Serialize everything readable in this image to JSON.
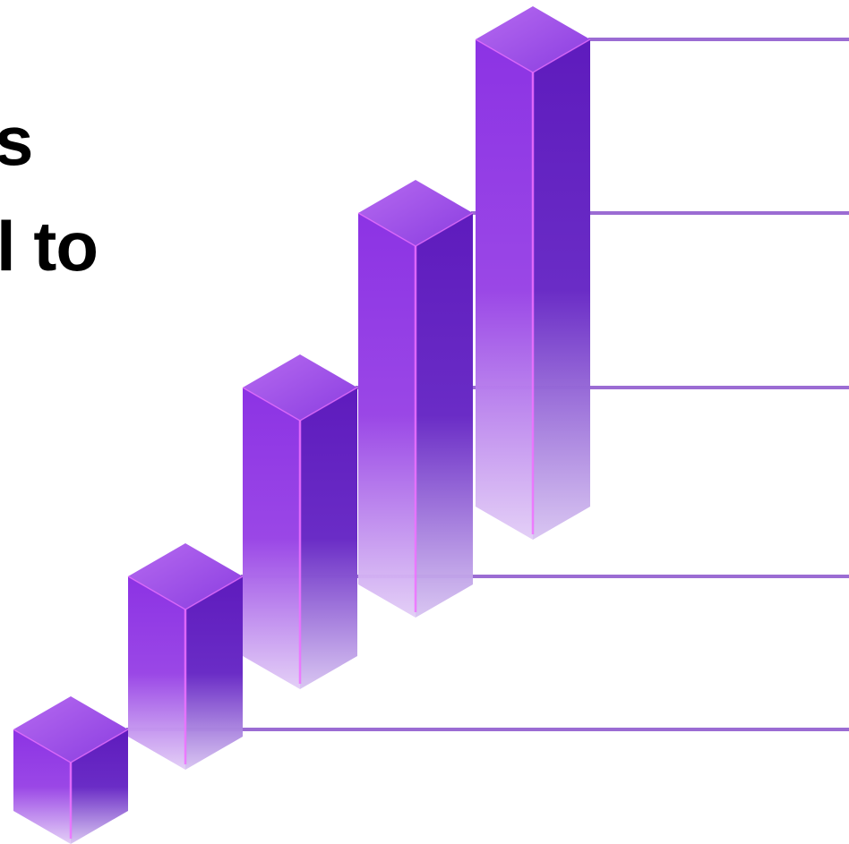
{
  "headline": {
    "line1": "s",
    "line2": "l to"
  },
  "graphic": {
    "bar_count": 5,
    "bar_levels": [
      1,
      2,
      3,
      4,
      5
    ],
    "colors": {
      "bar_top_light": "#b66af0",
      "bar_top_dark": "#8a3de0",
      "bar_left_top": "#8c33e4",
      "bar_right_top": "#5e1bbd",
      "bar_bottom_fade": "#e2cdf6",
      "edge_highlight": "#f070ff",
      "guide_line": "#9b6cd3"
    }
  }
}
